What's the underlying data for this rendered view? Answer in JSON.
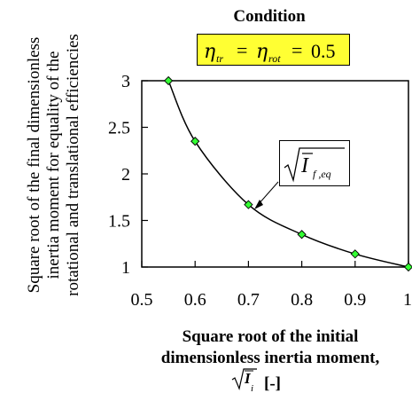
{
  "chart_data": {
    "type": "line",
    "title": "Condition",
    "condition": {
      "eta_symbol": "η",
      "sub_tr": "tr",
      "sub_rot": "rot",
      "equals": "=",
      "value": "0.5"
    },
    "ylabel_lines": [
      "Square root of the final dimensionless",
      "inertia moment for equality of the",
      "rotational and translational efficiencies"
    ],
    "xlabel_lines": [
      "Square root of the initial",
      "dimensionless inertia moment,"
    ],
    "xlabel_symbol": {
      "base": "I",
      "sub": "i",
      "unit": "[-]"
    },
    "annotation": {
      "base": "I",
      "sub": "f ,eq"
    },
    "xlim": [
      0.5,
      1
    ],
    "ylim": [
      1,
      3
    ],
    "x_ticks": [
      "0.5",
      "0.6",
      "0.7",
      "0.8",
      "0.9",
      "1"
    ],
    "y_ticks": [
      "1",
      "1.5",
      "2",
      "2.5",
      "3"
    ],
    "grid": false,
    "series": [
      {
        "x": [
          0.55,
          0.6,
          0.7,
          0.8,
          0.9,
          1.0
        ],
        "y": [
          3.0,
          2.35,
          1.67,
          1.35,
          1.14,
          1.0
        ],
        "marker": "diamond",
        "line_color": "#000000",
        "marker_color": "#33ff33"
      }
    ]
  }
}
